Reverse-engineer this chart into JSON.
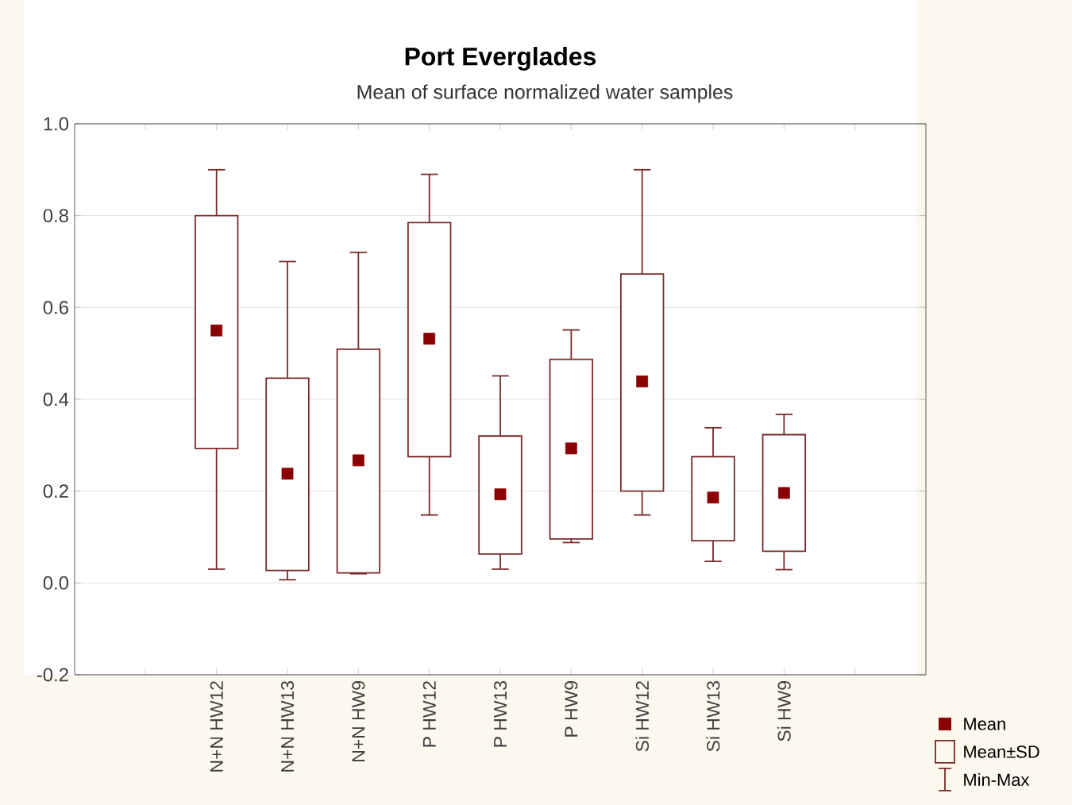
{
  "chart_data": {
    "type": "box",
    "title": "Port Everglades",
    "subtitle": "Mean of surface normalized water samples",
    "categories": [
      "N+N HW12",
      "N+N HW13",
      "N+N HW9",
      "P HW12",
      "P HW13",
      "P HW9",
      "Si HW12",
      "Si HW13",
      "Si HW9"
    ],
    "ylim": [
      -0.2,
      1.0
    ],
    "yticks": [
      {
        "value": -0.2,
        "label": "-0.2"
      },
      {
        "value": 0,
        "label": "0.0"
      },
      {
        "value": 0.2,
        "label": "0.2"
      },
      {
        "value": 0.4,
        "label": "0.4"
      },
      {
        "value": 0.6,
        "label": "0.6"
      },
      {
        "value": 0.8,
        "label": "0.8"
      },
      {
        "value": 1.0,
        "label": "1.0"
      }
    ],
    "grid": "y",
    "legend": "bottom right",
    "annotations": [
      "Min-Max"
    ],
    "series": [
      {
        "name": "Mean",
        "type": "scatter",
        "marker": "square",
        "color": "#8b0000",
        "values": [
          0.55,
          0.238,
          0.267,
          0.532,
          0.193,
          0.293,
          0.439,
          0.186,
          0.196
        ]
      },
      {
        "name": "Mean±SD",
        "color": "#7a2a2a",
        "boxes": [
          {
            "low": 0.03,
            "q1": 0.293,
            "q3": 0.8,
            "high": 0.9
          },
          {
            "low": 0.007,
            "q1": 0.027,
            "q3": 0.446,
            "high": 0.7
          },
          {
            "low": 0.02,
            "q1": 0.022,
            "q3": 0.509,
            "high": 0.72
          },
          {
            "low": 0.148,
            "q1": 0.275,
            "q3": 0.785,
            "high": 0.89
          },
          {
            "low": 0.03,
            "q1": 0.063,
            "q3": 0.32,
            "high": 0.451
          },
          {
            "low": 0.088,
            "q1": 0.096,
            "q3": 0.487,
            "high": 0.551
          },
          {
            "low": 0.148,
            "q1": 0.2,
            "q3": 0.673,
            "high": 0.9
          },
          {
            "low": 0.047,
            "q1": 0.092,
            "q3": 0.275,
            "high": 0.338
          },
          {
            "low": 0.029,
            "q1": 0.069,
            "q3": 0.323,
            "high": 0.367
          }
        ]
      }
    ]
  }
}
